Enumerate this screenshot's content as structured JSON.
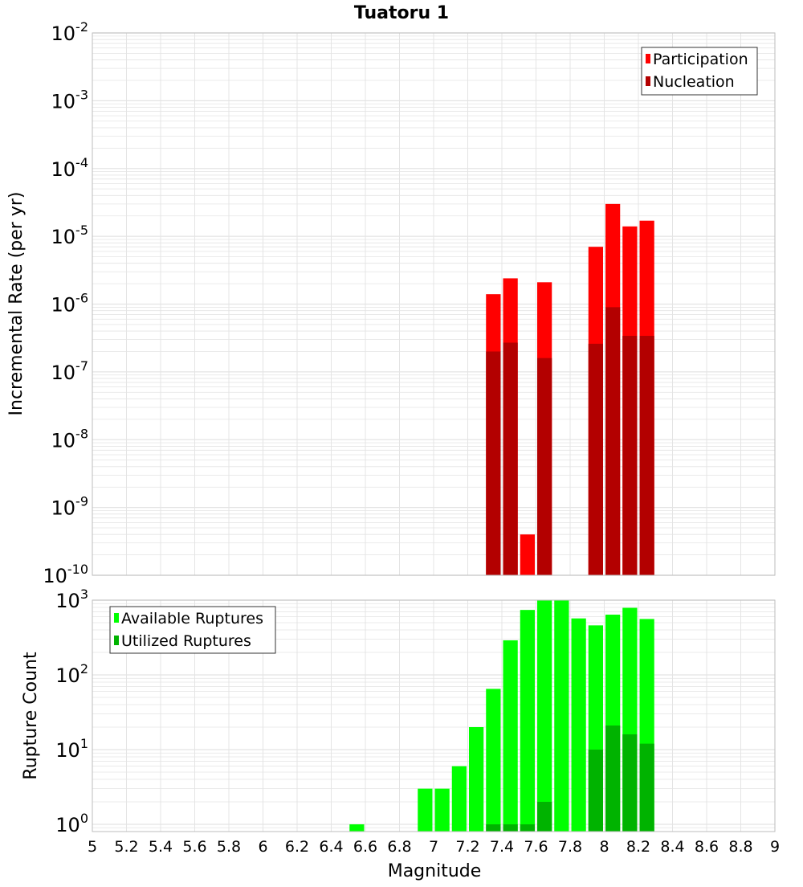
{
  "figure_title": "Tuatoru 1",
  "xlabel": "Magnitude",
  "colors": {
    "participation": "#ff0000",
    "nucleation": "#b30000",
    "available": "#00ff00",
    "utilized": "#00b300",
    "grid": "#e4e4e4",
    "frame": "#bdbdbd"
  },
  "chart_data": [
    {
      "type": "bar",
      "scale": "log",
      "ylabel": "Incremental Rate (per yr)",
      "xlim": [
        5,
        9
      ],
      "ylim": [
        1e-10,
        0.01
      ],
      "bar_width": 0.1,
      "legend_position": "top-right",
      "x": [
        7.35,
        7.45,
        7.55,
        7.65,
        7.95,
        8.05,
        8.15,
        8.25
      ],
      "series": [
        {
          "name": "Participation",
          "values": [
            1.4e-06,
            2.4e-06,
            4e-10,
            2.1e-06,
            7e-06,
            3e-05,
            1.4e-05,
            1.7e-05
          ]
        },
        {
          "name": "Nucleation",
          "values": [
            2e-07,
            2.7e-07,
            null,
            1.6e-07,
            2.6e-07,
            9e-07,
            3.4e-07,
            3.4e-07
          ]
        }
      ],
      "y_ticks": [
        {
          "base": "10",
          "exp": "-2"
        },
        {
          "base": "10",
          "exp": "-3"
        },
        {
          "base": "10",
          "exp": "-4"
        },
        {
          "base": "10",
          "exp": "-5"
        },
        {
          "base": "10",
          "exp": "-6"
        },
        {
          "base": "10",
          "exp": "-7"
        },
        {
          "base": "10",
          "exp": "-8"
        },
        {
          "base": "10",
          "exp": "-9"
        },
        {
          "base": "10",
          "exp": "-10"
        }
      ]
    },
    {
      "type": "bar",
      "scale": "log",
      "ylabel": "Rupture Count",
      "xlim": [
        5,
        9
      ],
      "ylim": [
        0.8,
        1000
      ],
      "bar_width": 0.1,
      "legend_position": "top-left",
      "x": [
        6.55,
        6.95,
        7.05,
        7.15,
        7.25,
        7.35,
        7.45,
        7.55,
        7.65,
        7.75,
        7.85,
        7.95,
        8.05,
        8.15,
        8.25
      ],
      "series": [
        {
          "name": "Available Ruptures",
          "values": [
            1,
            3,
            3,
            6,
            20,
            65,
            290,
            740,
            1000,
            990,
            570,
            460,
            640,
            790,
            560
          ]
        },
        {
          "name": "Utilized Ruptures",
          "values": [
            null,
            null,
            null,
            null,
            null,
            1,
            1,
            1,
            2,
            null,
            null,
            10,
            21,
            16,
            12
          ]
        }
      ],
      "y_ticks": [
        {
          "base": "10",
          "exp": "3"
        },
        {
          "base": "10",
          "exp": "2"
        },
        {
          "base": "10",
          "exp": "1"
        },
        {
          "base": "10",
          "exp": "0"
        }
      ]
    }
  ],
  "x_tick_labels": [
    "5",
    "5.2",
    "5.4",
    "5.6",
    "5.8",
    "6",
    "6.2",
    "6.4",
    "6.6",
    "6.8",
    "7",
    "7.2",
    "7.4",
    "7.6",
    "7.8",
    "8",
    "8.2",
    "8.4",
    "8.6",
    "8.8",
    "9"
  ]
}
